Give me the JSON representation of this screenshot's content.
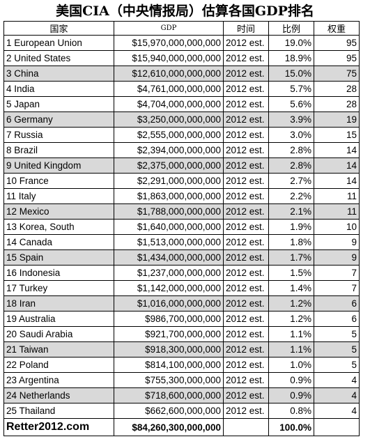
{
  "title": "美国CIA（中央情报局）估算各国GDP排名",
  "headers": {
    "country": "国家",
    "gdp": "GDP",
    "time": "时间",
    "ratio": "比例",
    "weight": "权重"
  },
  "rows": [
    {
      "country": "1 European Union",
      "gdp": "$15,970,000,000,000",
      "time": "2012 est.",
      "ratio": "19.0%",
      "weight": "95"
    },
    {
      "country": "2 United States",
      "gdp": "$15,940,000,000,000",
      "time": "2012 est.",
      "ratio": "18.9%",
      "weight": "95"
    },
    {
      "country": "3 China",
      "gdp": "$12,610,000,000,000",
      "time": "2012 est.",
      "ratio": "15.0%",
      "weight": "75"
    },
    {
      "country": "4 India",
      "gdp": "$4,761,000,000,000",
      "time": "2012 est.",
      "ratio": "5.7%",
      "weight": "28"
    },
    {
      "country": "5 Japan",
      "gdp": "$4,704,000,000,000",
      "time": "2012 est.",
      "ratio": "5.6%",
      "weight": "28"
    },
    {
      "country": "6 Germany",
      "gdp": "$3,250,000,000,000",
      "time": "2012 est.",
      "ratio": "3.9%",
      "weight": "19"
    },
    {
      "country": "7 Russia",
      "gdp": "$2,555,000,000,000",
      "time": "2012 est.",
      "ratio": "3.0%",
      "weight": "15"
    },
    {
      "country": "8 Brazil",
      "gdp": "$2,394,000,000,000",
      "time": "2012 est.",
      "ratio": "2.8%",
      "weight": "14"
    },
    {
      "country": "9 United Kingdom",
      "gdp": "$2,375,000,000,000",
      "time": "2012 est.",
      "ratio": "2.8%",
      "weight": "14"
    },
    {
      "country": "10 France",
      "gdp": "$2,291,000,000,000",
      "time": "2012 est.",
      "ratio": "2.7%",
      "weight": "14"
    },
    {
      "country": "11 Italy",
      "gdp": "$1,863,000,000,000",
      "time": "2012 est.",
      "ratio": "2.2%",
      "weight": "11"
    },
    {
      "country": "12 Mexico",
      "gdp": "$1,788,000,000,000",
      "time": "2012 est.",
      "ratio": "2.1%",
      "weight": "11"
    },
    {
      "country": "13 Korea, South",
      "gdp": "$1,640,000,000,000",
      "time": "2012 est.",
      "ratio": "1.9%",
      "weight": "10"
    },
    {
      "country": "14 Canada",
      "gdp": "$1,513,000,000,000",
      "time": "2012 est.",
      "ratio": "1.8%",
      "weight": "9"
    },
    {
      "country": "15 Spain",
      "gdp": "$1,434,000,000,000",
      "time": "2012 est.",
      "ratio": "1.7%",
      "weight": "9"
    },
    {
      "country": "16 Indonesia",
      "gdp": "$1,237,000,000,000",
      "time": "2012 est.",
      "ratio": "1.5%",
      "weight": "7"
    },
    {
      "country": "17 Turkey",
      "gdp": "$1,142,000,000,000",
      "time": "2012 est.",
      "ratio": "1.4%",
      "weight": "7"
    },
    {
      "country": "18 Iran",
      "gdp": "$1,016,000,000,000",
      "time": "2012 est.",
      "ratio": "1.2%",
      "weight": "6"
    },
    {
      "country": "19 Australia",
      "gdp": "$986,700,000,000",
      "time": "2012 est.",
      "ratio": "1.2%",
      "weight": "6"
    },
    {
      "country": "20 Saudi Arabia",
      "gdp": "$921,700,000,000",
      "time": "2012 est.",
      "ratio": "1.1%",
      "weight": "5"
    },
    {
      "country": "21 Taiwan",
      "gdp": "$918,300,000,000",
      "time": "2012 est.",
      "ratio": "1.1%",
      "weight": "5"
    },
    {
      "country": "22 Poland",
      "gdp": "$814,100,000,000",
      "time": "2012 est.",
      "ratio": "1.0%",
      "weight": "5"
    },
    {
      "country": "23 Argentina",
      "gdp": "$755,300,000,000",
      "time": "2012 est.",
      "ratio": "0.9%",
      "weight": "4"
    },
    {
      "country": "24 Netherlands",
      "gdp": "$718,600,000,000",
      "time": "2012 est.",
      "ratio": "0.9%",
      "weight": "4"
    },
    {
      "country": "25 Thailand",
      "gdp": "$662,600,000,000",
      "time": "2012 est.",
      "ratio": "0.8%",
      "weight": "4"
    }
  ],
  "shaded_rows": [
    3,
    6,
    9,
    12,
    15,
    18,
    21,
    24
  ],
  "footer": {
    "brand": "Retter2012.com",
    "total_gdp": "$84,260,300,000,000",
    "total_ratio": "100.0%"
  },
  "colors": {
    "shade": "#d9d9d9",
    "border": "#000000"
  }
}
